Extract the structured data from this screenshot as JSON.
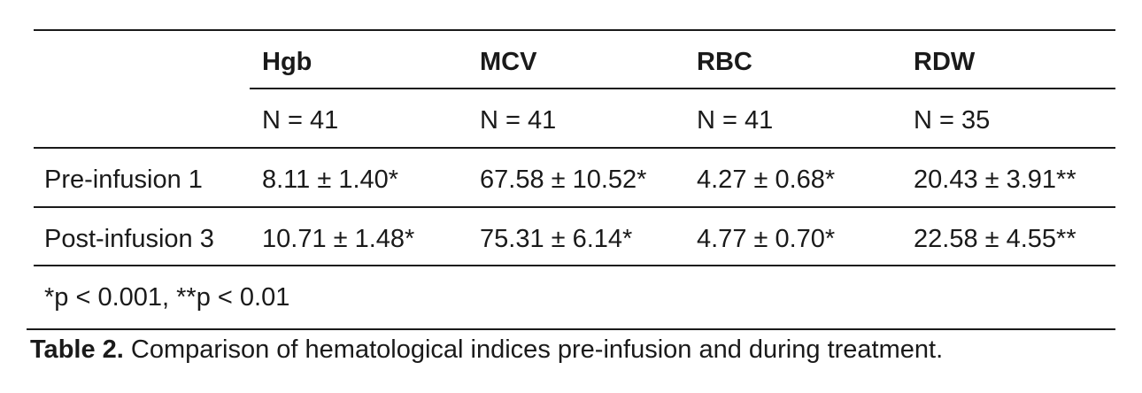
{
  "table": {
    "columns": [
      {
        "name": "Hgb",
        "n": "N = 41"
      },
      {
        "name": "MCV",
        "n": "N = 41"
      },
      {
        "name": "RBC",
        "n": "N = 41"
      },
      {
        "name": "RDW",
        "n": "N = 35"
      }
    ],
    "rows": [
      {
        "label": "Pre-infusion 1",
        "values": [
          "8.11 ± 1.40*",
          "67.58 ± 10.52*",
          "4.27 ± 0.68*",
          "20.43 ± 3.91**"
        ]
      },
      {
        "label": "Post-infusion 3",
        "values": [
          "10.71 ± 1.48*",
          "75.31 ± 6.14*",
          "4.77 ± 0.70*",
          "22.58 ± 4.55**"
        ]
      }
    ],
    "footnote": "*p < 0.001, **p < 0.01"
  },
  "caption": {
    "label": "Table 2.",
    "text": " Comparison of hematological indices pre-infusion and during treatment."
  }
}
